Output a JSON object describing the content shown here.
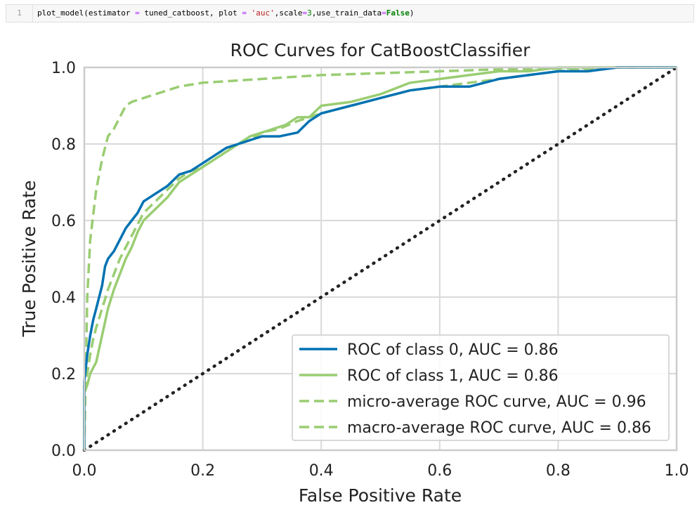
{
  "code_cell": {
    "line_number": "1",
    "tokens": [
      {
        "t": "plot_model(estimator ",
        "c": ""
      },
      {
        "t": "=",
        "c": "tok-op"
      },
      {
        "t": " tuned_catboost, plot ",
        "c": ""
      },
      {
        "t": "=",
        "c": "tok-op"
      },
      {
        "t": " ",
        "c": ""
      },
      {
        "t": "'auc'",
        "c": "tok-str"
      },
      {
        "t": ",scale",
        "c": ""
      },
      {
        "t": "=",
        "c": "tok-op"
      },
      {
        "t": "3",
        "c": "tok-num"
      },
      {
        "t": ",use_train_data",
        "c": ""
      },
      {
        "t": "=",
        "c": "tok-op"
      },
      {
        "t": "False",
        "c": "tok-kw"
      },
      {
        "t": ")",
        "c": ""
      }
    ]
  },
  "chart_data": {
    "type": "line",
    "title": "ROC Curves for CatBoostClassifier",
    "xlabel": "False Positive Rate",
    "ylabel": "True Positive Rate",
    "xlim": [
      0.0,
      1.0
    ],
    "ylim": [
      0.0,
      1.0
    ],
    "xticks": [
      "0.0",
      "0.2",
      "0.4",
      "0.6",
      "0.8",
      "1.0"
    ],
    "yticks": [
      "0.0",
      "0.2",
      "0.4",
      "0.6",
      "0.8",
      "1.0"
    ],
    "grid": true,
    "legend_position": "lower right",
    "colors": {
      "class0": "#0072b2",
      "class1": "#9acd72",
      "diagonal": "#222222",
      "grid": "#d9d9d9",
      "axis": "#cccccc"
    },
    "series": [
      {
        "name": "ROC of class 0, AUC = 0.86",
        "style": "solid",
        "color": "#0072b2",
        "x": [
          0,
          0.0,
          0.005,
          0.01,
          0.015,
          0.02,
          0.025,
          0.03,
          0.035,
          0.04,
          0.045,
          0.05,
          0.06,
          0.07,
          0.08,
          0.09,
          0.1,
          0.12,
          0.14,
          0.16,
          0.18,
          0.2,
          0.22,
          0.24,
          0.26,
          0.28,
          0.3,
          0.33,
          0.36,
          0.38,
          0.4,
          0.45,
          0.5,
          0.55,
          0.6,
          0.65,
          0.7,
          0.75,
          0.8,
          0.85,
          0.9,
          0.95,
          1.0
        ],
        "y": [
          0,
          0.18,
          0.25,
          0.3,
          0.34,
          0.37,
          0.4,
          0.43,
          0.48,
          0.5,
          0.51,
          0.52,
          0.55,
          0.58,
          0.6,
          0.62,
          0.65,
          0.67,
          0.69,
          0.72,
          0.73,
          0.75,
          0.77,
          0.79,
          0.8,
          0.81,
          0.82,
          0.82,
          0.83,
          0.86,
          0.88,
          0.9,
          0.92,
          0.94,
          0.95,
          0.95,
          0.97,
          0.98,
          0.99,
          0.99,
          1.0,
          1.0,
          1.0
        ]
      },
      {
        "name": "ROC of class 1, AUC = 0.86",
        "style": "solid",
        "color": "#9acd72",
        "x": [
          0,
          0.0,
          0.005,
          0.01,
          0.02,
          0.03,
          0.04,
          0.05,
          0.06,
          0.07,
          0.08,
          0.09,
          0.1,
          0.12,
          0.14,
          0.16,
          0.18,
          0.2,
          0.22,
          0.24,
          0.26,
          0.28,
          0.3,
          0.32,
          0.34,
          0.36,
          0.38,
          0.4,
          0.45,
          0.5,
          0.55,
          0.6,
          0.65,
          0.7,
          0.75,
          0.8,
          0.85,
          0.9,
          0.95,
          1.0
        ],
        "y": [
          0,
          0.15,
          0.17,
          0.2,
          0.23,
          0.3,
          0.37,
          0.42,
          0.46,
          0.5,
          0.53,
          0.57,
          0.6,
          0.63,
          0.66,
          0.7,
          0.72,
          0.74,
          0.76,
          0.78,
          0.8,
          0.82,
          0.83,
          0.84,
          0.85,
          0.87,
          0.87,
          0.9,
          0.91,
          0.93,
          0.96,
          0.97,
          0.98,
          0.99,
          0.99,
          1.0,
          1.0,
          1.0,
          1.0,
          1.0
        ]
      },
      {
        "name": "micro-average ROC curve, AUC = 0.96",
        "style": "dashed",
        "color": "#9acd72",
        "x": [
          0,
          0.005,
          0.01,
          0.02,
          0.03,
          0.04,
          0.05,
          0.06,
          0.07,
          0.08,
          0.1,
          0.12,
          0.14,
          0.16,
          0.18,
          0.2,
          0.25,
          0.3,
          0.35,
          0.4,
          0.5,
          0.6,
          0.7,
          0.8,
          0.9,
          1.0
        ],
        "y": [
          0,
          0.4,
          0.55,
          0.68,
          0.76,
          0.82,
          0.84,
          0.87,
          0.9,
          0.91,
          0.92,
          0.93,
          0.94,
          0.95,
          0.955,
          0.96,
          0.965,
          0.97,
          0.975,
          0.98,
          0.985,
          0.99,
          0.995,
          0.997,
          1.0,
          1.0
        ]
      },
      {
        "name": "macro-average ROC curve, AUC = 0.86",
        "style": "dashed",
        "color": "#9acd72",
        "x": [
          0,
          0.0,
          0.005,
          0.01,
          0.015,
          0.02,
          0.03,
          0.04,
          0.05,
          0.06,
          0.07,
          0.08,
          0.09,
          0.1,
          0.12,
          0.14,
          0.16,
          0.18,
          0.2,
          0.22,
          0.24,
          0.26,
          0.28,
          0.3,
          0.33,
          0.36,
          0.4,
          0.45,
          0.5,
          0.55,
          0.6,
          0.65,
          0.7,
          0.75,
          0.8,
          0.85,
          0.9,
          0.95,
          1.0
        ],
        "y": [
          0,
          0.17,
          0.2,
          0.25,
          0.29,
          0.32,
          0.37,
          0.42,
          0.46,
          0.5,
          0.53,
          0.56,
          0.59,
          0.62,
          0.65,
          0.68,
          0.71,
          0.73,
          0.74,
          0.76,
          0.78,
          0.8,
          0.81,
          0.83,
          0.84,
          0.86,
          0.88,
          0.9,
          0.92,
          0.94,
          0.95,
          0.96,
          0.97,
          0.98,
          0.99,
          0.995,
          1.0,
          1.0,
          1.0
        ]
      },
      {
        "name": "",
        "style": "dotted",
        "color": "#222222",
        "x": [
          0,
          1
        ],
        "y": [
          0,
          1
        ]
      }
    ]
  }
}
